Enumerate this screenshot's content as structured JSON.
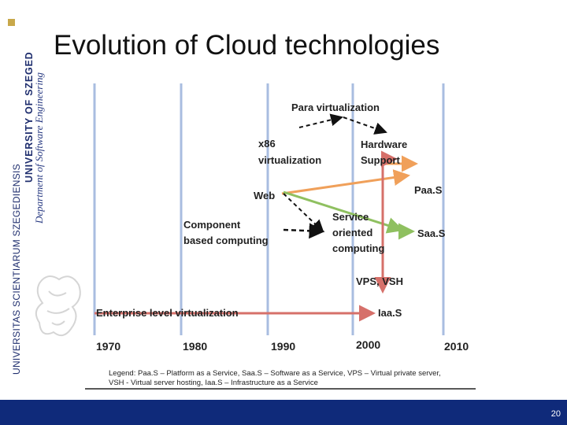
{
  "slide": {
    "title": "Evolution of Cloud technologies",
    "page_number": "20"
  },
  "university": {
    "latin_name": "UNIVERSITAS SCIENTIARUM SZEGEDIENSIS",
    "name": "UNIVERSITY OF SZEGED",
    "department": "Department of Software Engineering"
  },
  "diagram": {
    "years": [
      "1970",
      "1980",
      "1990",
      "2000",
      "2010"
    ],
    "nodes": {
      "para": "Para virtualization",
      "x86_1": "x86",
      "x86_2": "virtualization",
      "hw_1": "Hardware",
      "hw_2": "Support",
      "paas": "Paa.S",
      "web": "Web",
      "comp_1": "Component",
      "comp_2": "based computing",
      "soc_1": "Service",
      "soc_2": "oriented",
      "soc_3": "computing",
      "saas": "Saa.S",
      "vps": "VPS, VSH",
      "enterprise": "Enterprise level virtualization",
      "iaas": "Iaa.S"
    },
    "legend_1": "Legend: Paa.S – Platform as a Service, Saa.S – Software as a Service, VPS – Virtual private server,",
    "legend_2": "VSH - Virtual server hosting, Iaa.S – Infrastructure as a Service",
    "colors": {
      "timeline": "#a9bde0",
      "orange": "#f0a05a",
      "green": "#8fc060",
      "red": "#d6706a",
      "text": "#222222"
    }
  }
}
